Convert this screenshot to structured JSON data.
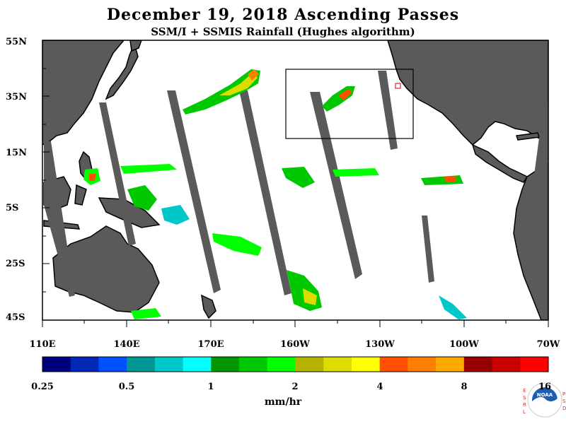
{
  "title": "December 19, 2018  Ascending Passes",
  "subtitle": "SSM/I + SSMIS Rainfall (Hughes algorithm)",
  "lat_labels": [
    "55N",
    "35N",
    "15N",
    "5S",
    "25S",
    "45S"
  ],
  "lon_labels": [
    "110E",
    "140E",
    "170E",
    "160W",
    "130W",
    "100W",
    "70W"
  ],
  "colorbar": {
    "colors": [
      "#00007f",
      "#0028b4",
      "#0050ff",
      "#009696",
      "#00c8c8",
      "#00ffff",
      "#009600",
      "#00c800",
      "#00ff00",
      "#b4b400",
      "#dcdc00",
      "#ffff00",
      "#ff5000",
      "#ff8000",
      "#ffaa00",
      "#960000",
      "#c80000",
      "#ff0000"
    ],
    "tick_labels": [
      "0.25",
      "0.5",
      "1",
      "2",
      "4",
      "8",
      "16"
    ],
    "units": "mm/hr"
  },
  "logo": {
    "left_letters": [
      "E",
      "S",
      "R",
      "L"
    ],
    "right_letters": [
      "P",
      "S",
      "D"
    ],
    "center_text": "NOAA"
  },
  "colors": {
    "land": "#5a5a5a",
    "ocean": "#ffffff",
    "no_data_swath": "#5a5a5a"
  }
}
